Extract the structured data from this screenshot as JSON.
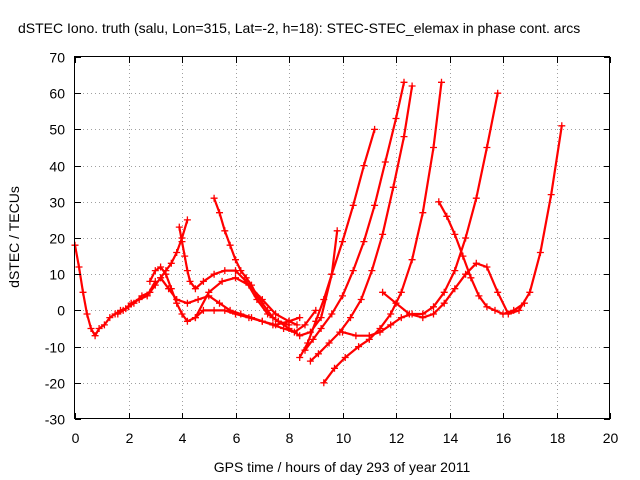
{
  "chart_data": {
    "type": "scatter",
    "title": "dSTEC Iono. truth (salu, Lon=315, Lat=-2, h=18): STEC-STEC_elemax in phase cont. arcs",
    "xlabel": "GPS time / hours of day 293 of year 2011",
    "ylabel": "dSTEC  / TECUs",
    "xlim": [
      0,
      20
    ],
    "ylim": [
      -30,
      70
    ],
    "xticks": [
      0,
      2,
      4,
      6,
      8,
      10,
      12,
      14,
      16,
      18,
      20
    ],
    "yticks": [
      -30,
      -20,
      -10,
      0,
      10,
      20,
      30,
      40,
      50,
      60,
      70
    ],
    "grid": true,
    "marker": "plus",
    "color": "#ff0000",
    "series": [
      {
        "x": [
          0,
          0.15,
          0.3,
          0.45,
          0.6,
          0.75,
          0.9,
          1.1,
          1.3,
          1.5,
          1.7,
          1.9,
          2.1,
          2.4,
          2.7,
          3.0
        ],
        "y": [
          18,
          12,
          5,
          -1,
          -5,
          -7,
          -5,
          -4,
          -2,
          -1,
          0,
          0.5,
          2,
          3,
          4,
          8
        ]
      },
      {
        "x": [
          1.6,
          1.8,
          2.0,
          2.2,
          2.5,
          2.8,
          3.0,
          3.2,
          3.4,
          3.6,
          3.8,
          4.0,
          4.2
        ],
        "y": [
          -1,
          0,
          1,
          2,
          4,
          5,
          7,
          9,
          11,
          13,
          16,
          20,
          25
        ]
      },
      {
        "x": [
          2.8,
          3.0,
          3.2,
          3.4,
          3.6,
          3.8,
          4.0,
          4.2,
          4.5,
          5.0,
          5.5,
          6.0,
          6.5,
          7.0,
          7.5,
          8.0,
          8.3
        ],
        "y": [
          8,
          11,
          12,
          10,
          6,
          2,
          -1,
          -3,
          -2,
          5,
          8,
          9,
          7,
          3,
          -1,
          -3,
          -4
        ]
      },
      {
        "x": [
          3.9,
          4.0,
          4.1,
          4.2,
          4.3,
          4.5,
          4.8,
          5.2,
          5.6,
          6.0,
          6.4,
          6.8,
          7.2,
          7.6,
          8.0
        ],
        "y": [
          23,
          19,
          15,
          11,
          8,
          6,
          8,
          10,
          11,
          11,
          8,
          3,
          -1,
          -3,
          -4
        ]
      },
      {
        "x": [
          3.2,
          3.5,
          3.8,
          4.2,
          4.6,
          5.0,
          5.4,
          5.8,
          6.2,
          6.6,
          7.0,
          7.4,
          7.8,
          8.2,
          8.6,
          9.0
        ],
        "y": [
          9,
          6,
          3,
          2,
          3,
          4,
          2,
          0,
          -1,
          -2,
          -3,
          -4,
          -5,
          -6,
          -4,
          0
        ]
      },
      {
        "x": [
          5.2,
          5.4,
          5.6,
          5.8,
          6.0,
          6.2,
          6.4,
          6.6,
          6.8,
          7.0,
          7.2,
          7.4,
          7.6,
          8.0,
          8.4,
          8.8,
          9.2,
          9.6,
          9.8
        ],
        "y": [
          31,
          27,
          22,
          18,
          14,
          11,
          9,
          7,
          4,
          2,
          0,
          -2,
          -3,
          -5,
          -7,
          -6,
          -2,
          10,
          22
        ]
      },
      {
        "x": [
          4.5,
          4.8,
          5.2,
          5.6,
          6.0,
          6.5,
          7.0,
          7.5,
          8.0,
          8.4
        ],
        "y": [
          -2,
          0,
          0,
          0,
          -1,
          -2,
          -3,
          -4,
          -3,
          -2
        ]
      },
      {
        "x": [
          8.4,
          8.7,
          9.0,
          9.3,
          9.6,
          10.0,
          10.4,
          10.8,
          11.2
        ],
        "y": [
          -13,
          -9,
          -3,
          3,
          10,
          19,
          29,
          40,
          50
        ]
      },
      {
        "x": [
          8.6,
          8.9,
          9.2,
          9.6,
          10.0,
          10.4,
          10.8,
          11.2,
          11.6,
          12.0,
          12.3
        ],
        "y": [
          -11,
          -8,
          -5,
          -1,
          4,
          11,
          19,
          29,
          41,
          53,
          63
        ]
      },
      {
        "x": [
          8.8,
          9.1,
          9.5,
          9.9,
          10.3,
          10.7,
          11.1,
          11.5,
          11.9,
          12.3,
          12.6
        ],
        "y": [
          -14,
          -12,
          -9,
          -6,
          -2,
          3,
          11,
          21,
          34,
          48,
          62
        ]
      },
      {
        "x": [
          9.3,
          9.7,
          10.1,
          10.6,
          11.0,
          11.4,
          11.8,
          12.2,
          12.6,
          13.0,
          13.4,
          13.7
        ],
        "y": [
          -20,
          -16,
          -13,
          -10,
          -8,
          -5,
          -1,
          5,
          14,
          27,
          45,
          63
        ]
      },
      {
        "x": [
          10.0,
          10.5,
          11.0,
          11.4,
          11.8,
          12.2,
          12.6,
          13.0,
          13.4,
          13.8,
          14.2,
          14.6,
          15.0,
          15.4,
          15.8
        ],
        "y": [
          -6,
          -7,
          -7,
          -6,
          -4,
          -2,
          -1,
          -1,
          1,
          5,
          11,
          20,
          31,
          45,
          60
        ]
      },
      {
        "x": [
          11.5,
          12.0,
          12.5,
          13.0,
          13.4,
          13.8,
          14.2,
          14.6,
          15.0,
          15.4,
          15.8,
          16.2,
          16.6,
          17.0,
          17.4,
          17.8,
          18.2
        ],
        "y": [
          5,
          2,
          -1,
          -2,
          -1,
          2,
          6,
          10,
          13,
          12,
          5,
          -1,
          0,
          5,
          16,
          32,
          51
        ]
      },
      {
        "x": [
          13.6,
          13.9,
          14.2,
          14.5,
          14.8,
          15.1,
          15.4,
          15.7,
          16.0,
          16.4,
          16.8
        ],
        "y": [
          30,
          26,
          21,
          15,
          9,
          4,
          1,
          0,
          -1,
          0,
          2
        ]
      }
    ]
  }
}
